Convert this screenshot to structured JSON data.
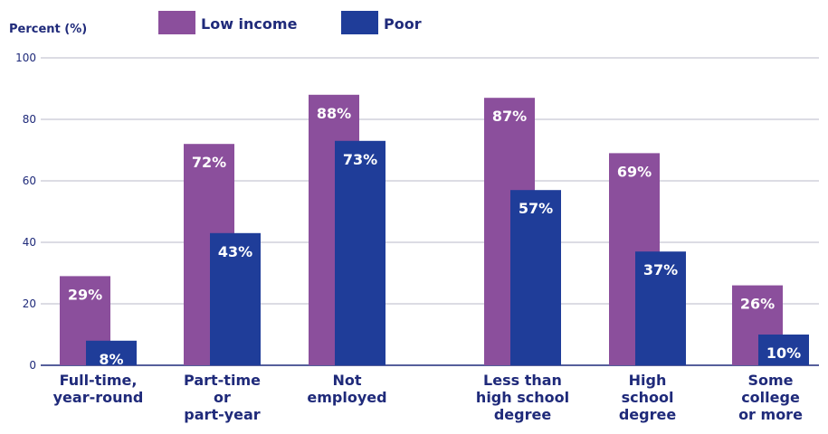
{
  "chart_data": {
    "type": "bar",
    "ylabel": "Percent (%)",
    "ylim": [
      0,
      100
    ],
    "yticks": [
      0,
      20,
      40,
      60,
      80,
      100
    ],
    "grid": true,
    "legend_position": "top",
    "categories": [
      [
        "Full-time,",
        "year-round"
      ],
      [
        "Part-time",
        "or",
        "part-year"
      ],
      [
        "Not",
        "employed"
      ],
      [
        "Less than",
        "high school",
        "degree"
      ],
      [
        "High",
        "school",
        "degree"
      ],
      [
        "Some",
        "college",
        "or more"
      ]
    ],
    "series": [
      {
        "name": "Low income",
        "color": "#8b4f9c",
        "values": [
          29,
          72,
          88,
          87,
          69,
          26
        ],
        "labels": [
          "29%",
          "72%",
          "88%",
          "87%",
          "69%",
          "26%"
        ]
      },
      {
        "name": "Poor",
        "color": "#1f3d99",
        "values": [
          8,
          43,
          73,
          57,
          37,
          10
        ],
        "labels": [
          "8%",
          "43%",
          "73%",
          "57%",
          "37%",
          "10%"
        ]
      }
    ]
  }
}
